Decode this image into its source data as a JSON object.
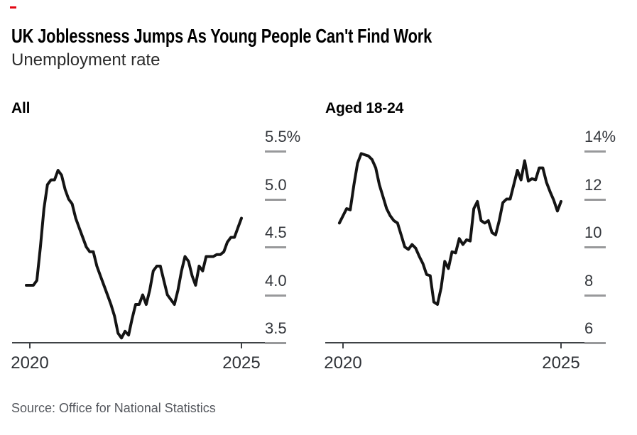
{
  "page": {
    "title": "UK Joblessness Jumps As Young People Can't Find Work",
    "subtitle": "Unemployment rate",
    "source": "Source: Office for National Statistics",
    "colors": {
      "background": "#ffffff",
      "title": "#000000",
      "subtitle": "#2b2b2b",
      "line": "#141414",
      "axis": "#3f4246",
      "tick_dash": "#98999b",
      "tick_label": "#33363b",
      "source": "#55585e",
      "accent_red": "#e30613"
    }
  },
  "chart_data": [
    {
      "type": "line",
      "title": "All",
      "series_name": "Unemployment rate, all ages",
      "unit": "%",
      "x_start_year": 2019.9167,
      "x_step_years": 0.0833333,
      "xlim": [
        2019.9167,
        2025.0
      ],
      "xticks": [
        2020,
        2025
      ],
      "xtick_labels": [
        "2020",
        "2025"
      ],
      "ylim": [
        3.5,
        5.5
      ],
      "yticks": [
        3.5,
        4.0,
        4.5,
        5.0,
        5.5
      ],
      "ytick_labels": [
        "3.5",
        "4.0",
        "4.5",
        "5.0",
        "5.5%"
      ],
      "legend": "none",
      "grid": "off",
      "values": [
        4.1,
        4.1,
        4.1,
        4.15,
        4.5,
        4.9,
        5.15,
        5.2,
        5.2,
        5.3,
        5.25,
        5.1,
        5.0,
        4.95,
        4.8,
        4.7,
        4.6,
        4.5,
        4.45,
        4.45,
        4.3,
        4.2,
        4.1,
        4.0,
        3.9,
        3.78,
        3.6,
        3.55,
        3.62,
        3.58,
        3.75,
        3.9,
        3.9,
        4.0,
        3.9,
        4.05,
        4.25,
        4.3,
        4.3,
        4.15,
        4.0,
        3.95,
        3.9,
        4.05,
        4.25,
        4.4,
        4.35,
        4.2,
        4.1,
        4.3,
        4.25,
        4.4,
        4.4,
        4.4,
        4.42,
        4.42,
        4.45,
        4.55,
        4.6,
        4.6,
        4.7,
        4.8
      ]
    },
    {
      "type": "line",
      "title": "Aged 18-24",
      "series_name": "Unemployment rate, aged 18-24",
      "unit": "%",
      "x_start_year": 2019.9167,
      "x_step_years": 0.0833333,
      "xlim": [
        2019.9167,
        2025.0
      ],
      "xticks": [
        2020,
        2025
      ],
      "xtick_labels": [
        "2020",
        "2025"
      ],
      "ylim": [
        6,
        14
      ],
      "yticks": [
        6,
        8,
        10,
        12,
        14
      ],
      "ytick_labels": [
        "6",
        "8",
        "10",
        "12",
        "14%"
      ],
      "legend": "none",
      "grid": "off",
      "values": [
        11.0,
        11.3,
        11.6,
        11.55,
        12.6,
        13.5,
        13.9,
        13.85,
        13.8,
        13.65,
        13.3,
        12.6,
        12.1,
        11.6,
        11.3,
        11.1,
        11.0,
        10.5,
        10.0,
        9.9,
        10.1,
        9.95,
        9.6,
        9.3,
        8.85,
        8.8,
        7.7,
        7.6,
        8.3,
        9.4,
        9.1,
        9.8,
        9.75,
        10.35,
        10.1,
        10.3,
        10.25,
        11.6,
        11.9,
        11.1,
        11.0,
        11.1,
        10.6,
        10.5,
        11.1,
        11.85,
        12.0,
        12.0,
        12.6,
        13.2,
        12.8,
        13.6,
        12.75,
        12.85,
        12.8,
        13.3,
        13.3,
        12.7,
        12.3,
        11.95,
        11.5,
        11.9
      ]
    }
  ]
}
